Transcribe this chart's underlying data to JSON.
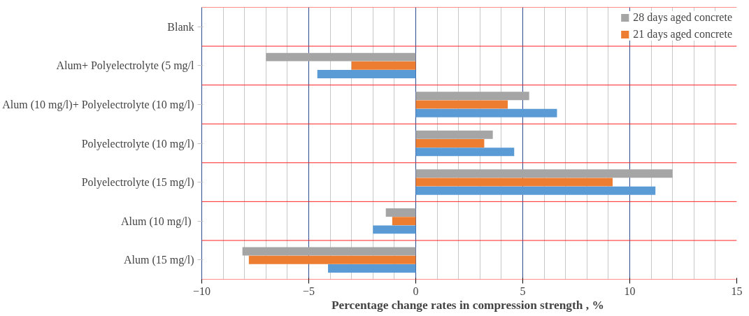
{
  "chart_data": {
    "type": "bar",
    "orientation": "horizontal",
    "xlabel": "Percentage change  rates in compression strength , %",
    "categories": [
      "Blank",
      "Alum+ Polyelectrolyte (5 mg/l",
      "Alum (10 mg/l)+ Polyelectrolyte (10 mg/l)",
      "Polyelectrolyte (10 mg/l)",
      "Polyelectrolyte (15 mg/l)",
      "Alum  (10 mg/l)",
      "Alum (15 mg/l)"
    ],
    "series": [
      {
        "name": "28 days aged concrete",
        "color": "#a5a5a5",
        "values": [
          0,
          -7.0,
          5.3,
          3.6,
          12.0,
          -1.4,
          -8.1
        ]
      },
      {
        "name": "21 days aged concrete",
        "color": "#ed7d31",
        "values": [
          0,
          -3.0,
          4.3,
          3.2,
          9.2,
          -1.1,
          -7.8
        ]
      },
      {
        "color": "#5b9bd5",
        "values": [
          0,
          -4.6,
          6.6,
          4.6,
          11.2,
          -2.0,
          -4.1
        ]
      }
    ],
    "xlim": [
      -10,
      15
    ],
    "xticks": [
      -10,
      -5,
      0,
      5,
      10,
      15
    ],
    "grid": true,
    "legend": "top right"
  }
}
